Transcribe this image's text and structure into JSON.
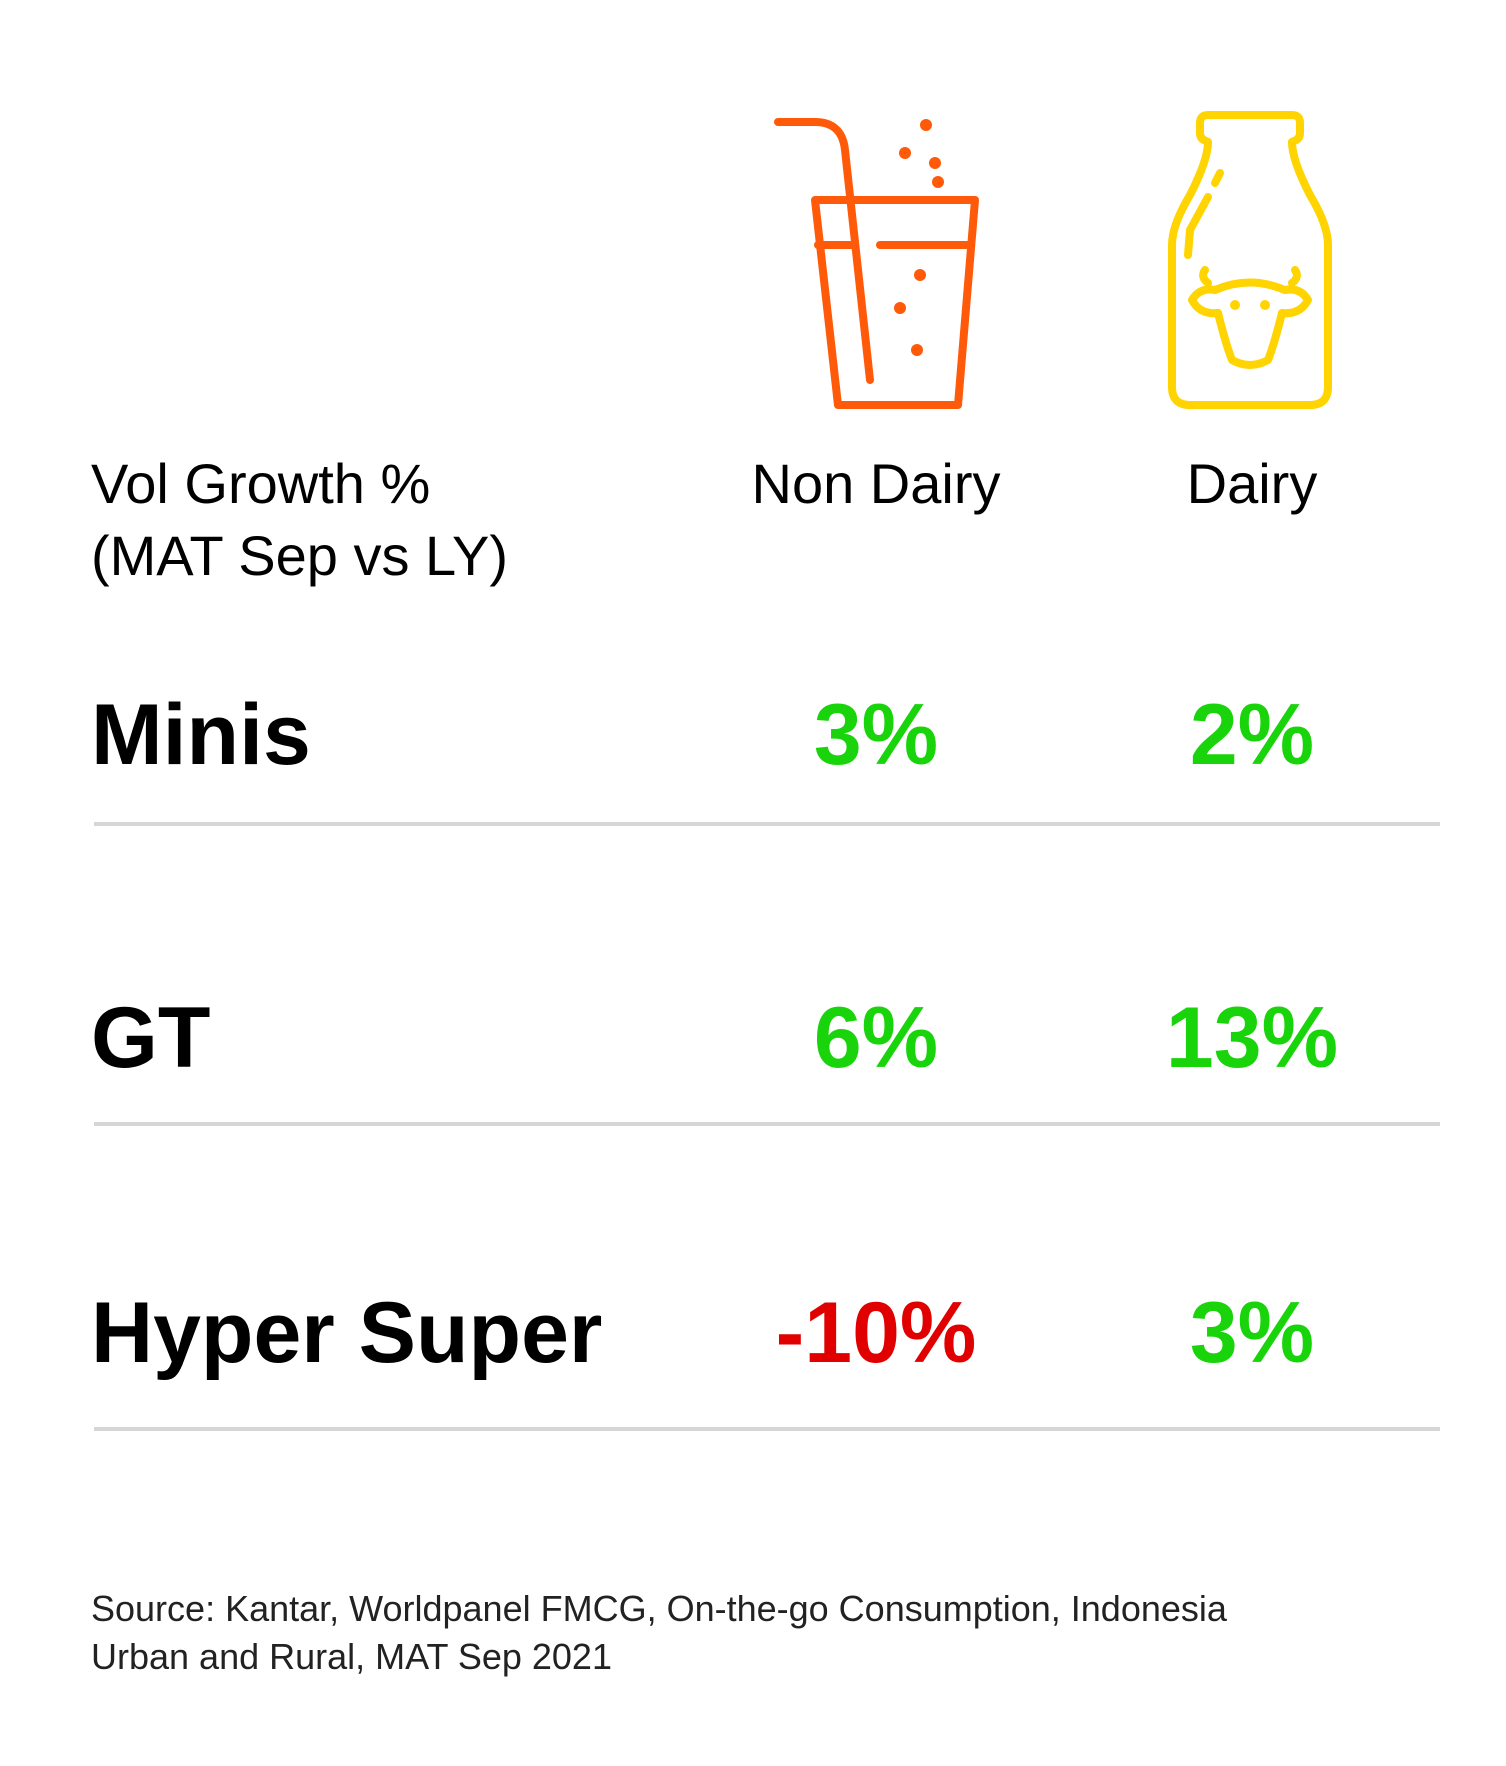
{
  "header": {
    "label_line1": "Vol Growth %",
    "label_line2": "(MAT Sep vs LY)"
  },
  "columns": [
    {
      "name": "Non Dairy",
      "icon": "juice-glass-icon",
      "icon_color": "#ff5a0a"
    },
    {
      "name": "Dairy",
      "icon": "milk-bottle-cow-icon",
      "icon_color": "#ffd400"
    }
  ],
  "colors": {
    "positive": "#19d40b",
    "negative": "#e00000",
    "divider": "#d6d6d6"
  },
  "chart_data": {
    "type": "table",
    "title": "",
    "columns": [
      "Non Dairy",
      "Dairy"
    ],
    "rows": [
      {
        "label": "Minis",
        "values": [
          3,
          2
        ],
        "display": [
          "3%",
          "2%"
        ]
      },
      {
        "label": "GT",
        "values": [
          6,
          13
        ],
        "display": [
          "6%",
          "13%"
        ]
      },
      {
        "label": "Hyper Super",
        "values": [
          -10,
          3
        ],
        "display": [
          "-10%",
          "3%"
        ]
      }
    ]
  },
  "footer": {
    "source_line1": "Source: Kantar, Worldpanel FMCG, On-the-go Consumption, Indonesia",
    "source_line2": "Urban and Rural, MAT Sep 2021"
  }
}
